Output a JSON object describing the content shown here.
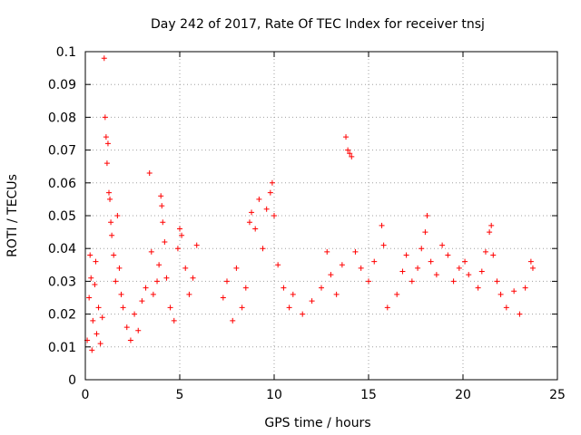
{
  "chart_data": {
    "type": "scatter",
    "title": "Day 242 of 2017, Rate Of TEC Index for receiver tnsj",
    "xlabel": "GPS time / hours",
    "ylabel": "ROTI / TECUs",
    "xlim": [
      0,
      25
    ],
    "ylim": [
      0,
      0.1
    ],
    "xticks": [
      0,
      5,
      10,
      15,
      20,
      25
    ],
    "xtick_labels": [
      "0",
      "5",
      "10",
      "15",
      "20",
      "25"
    ],
    "yticks": [
      0,
      0.01,
      0.02,
      0.03,
      0.04,
      0.05,
      0.06,
      0.07,
      0.08,
      0.09,
      0.1
    ],
    "ytick_labels": [
      "0",
      "0.01",
      "0.02",
      "0.03",
      "0.04",
      "0.05",
      "0.06",
      "0.07",
      "0.08",
      "0.09",
      "0.1"
    ],
    "grid": true,
    "marker": "+",
    "color": "#ff0000",
    "series": [
      {
        "name": "ROTI",
        "points": [
          [
            0.1,
            0.012
          ],
          [
            0.2,
            0.025
          ],
          [
            0.25,
            0.038
          ],
          [
            0.3,
            0.031
          ],
          [
            0.35,
            0.009
          ],
          [
            0.4,
            0.018
          ],
          [
            0.5,
            0.029
          ],
          [
            0.55,
            0.036
          ],
          [
            0.6,
            0.014
          ],
          [
            0.7,
            0.022
          ],
          [
            0.8,
            0.011
          ],
          [
            0.9,
            0.019
          ],
          [
            1.0,
            0.098
          ],
          [
            1.05,
            0.08
          ],
          [
            1.1,
            0.074
          ],
          [
            1.15,
            0.066
          ],
          [
            1.2,
            0.072
          ],
          [
            1.25,
            0.057
          ],
          [
            1.3,
            0.055
          ],
          [
            1.35,
            0.048
          ],
          [
            1.4,
            0.044
          ],
          [
            1.5,
            0.038
          ],
          [
            1.6,
            0.03
          ],
          [
            1.7,
            0.05
          ],
          [
            1.8,
            0.034
          ],
          [
            1.9,
            0.026
          ],
          [
            2.0,
            0.022
          ],
          [
            2.2,
            0.016
          ],
          [
            2.4,
            0.012
          ],
          [
            2.6,
            0.02
          ],
          [
            2.8,
            0.015
          ],
          [
            3.0,
            0.024
          ],
          [
            3.2,
            0.028
          ],
          [
            3.4,
            0.063
          ],
          [
            3.5,
            0.039
          ],
          [
            3.6,
            0.026
          ],
          [
            3.8,
            0.03
          ],
          [
            3.9,
            0.035
          ],
          [
            4.0,
            0.056
          ],
          [
            4.05,
            0.053
          ],
          [
            4.1,
            0.048
          ],
          [
            4.2,
            0.042
          ],
          [
            4.3,
            0.031
          ],
          [
            4.5,
            0.022
          ],
          [
            4.7,
            0.018
          ],
          [
            4.9,
            0.04
          ],
          [
            5.0,
            0.046
          ],
          [
            5.1,
            0.044
          ],
          [
            5.3,
            0.034
          ],
          [
            5.5,
            0.026
          ],
          [
            5.7,
            0.031
          ],
          [
            5.9,
            0.041
          ],
          [
            7.3,
            0.025
          ],
          [
            7.5,
            0.03
          ],
          [
            7.8,
            0.018
          ],
          [
            8.0,
            0.034
          ],
          [
            8.3,
            0.022
          ],
          [
            8.5,
            0.028
          ],
          [
            8.7,
            0.048
          ],
          [
            8.8,
            0.051
          ],
          [
            9.0,
            0.046
          ],
          [
            9.2,
            0.055
          ],
          [
            9.4,
            0.04
          ],
          [
            9.6,
            0.052
          ],
          [
            9.8,
            0.057
          ],
          [
            9.9,
            0.06
          ],
          [
            10.0,
            0.05
          ],
          [
            10.2,
            0.035
          ],
          [
            10.5,
            0.028
          ],
          [
            10.8,
            0.022
          ],
          [
            11.0,
            0.026
          ],
          [
            11.5,
            0.02
          ],
          [
            12.0,
            0.024
          ],
          [
            12.5,
            0.028
          ],
          [
            12.8,
            0.039
          ],
          [
            13.0,
            0.032
          ],
          [
            13.3,
            0.026
          ],
          [
            13.6,
            0.035
          ],
          [
            13.8,
            0.074
          ],
          [
            13.9,
            0.07
          ],
          [
            14.0,
            0.069
          ],
          [
            14.1,
            0.068
          ],
          [
            14.3,
            0.039
          ],
          [
            14.6,
            0.034
          ],
          [
            15.0,
            0.03
          ],
          [
            15.3,
            0.036
          ],
          [
            15.7,
            0.047
          ],
          [
            15.8,
            0.041
          ],
          [
            16.0,
            0.022
          ],
          [
            16.5,
            0.026
          ],
          [
            16.8,
            0.033
          ],
          [
            17.0,
            0.038
          ],
          [
            17.3,
            0.03
          ],
          [
            17.6,
            0.034
          ],
          [
            17.8,
            0.04
          ],
          [
            18.0,
            0.045
          ],
          [
            18.1,
            0.05
          ],
          [
            18.3,
            0.036
          ],
          [
            18.6,
            0.032
          ],
          [
            18.9,
            0.041
          ],
          [
            19.2,
            0.038
          ],
          [
            19.5,
            0.03
          ],
          [
            19.8,
            0.034
          ],
          [
            20.1,
            0.036
          ],
          [
            20.3,
            0.032
          ],
          [
            20.8,
            0.028
          ],
          [
            21.0,
            0.033
          ],
          [
            21.2,
            0.039
          ],
          [
            21.4,
            0.045
          ],
          [
            21.5,
            0.047
          ],
          [
            21.6,
            0.038
          ],
          [
            21.8,
            0.03
          ],
          [
            22.0,
            0.026
          ],
          [
            22.3,
            0.022
          ],
          [
            22.7,
            0.027
          ],
          [
            23.0,
            0.02
          ],
          [
            23.3,
            0.028
          ],
          [
            23.6,
            0.036
          ],
          [
            23.7,
            0.034
          ]
        ]
      }
    ]
  }
}
